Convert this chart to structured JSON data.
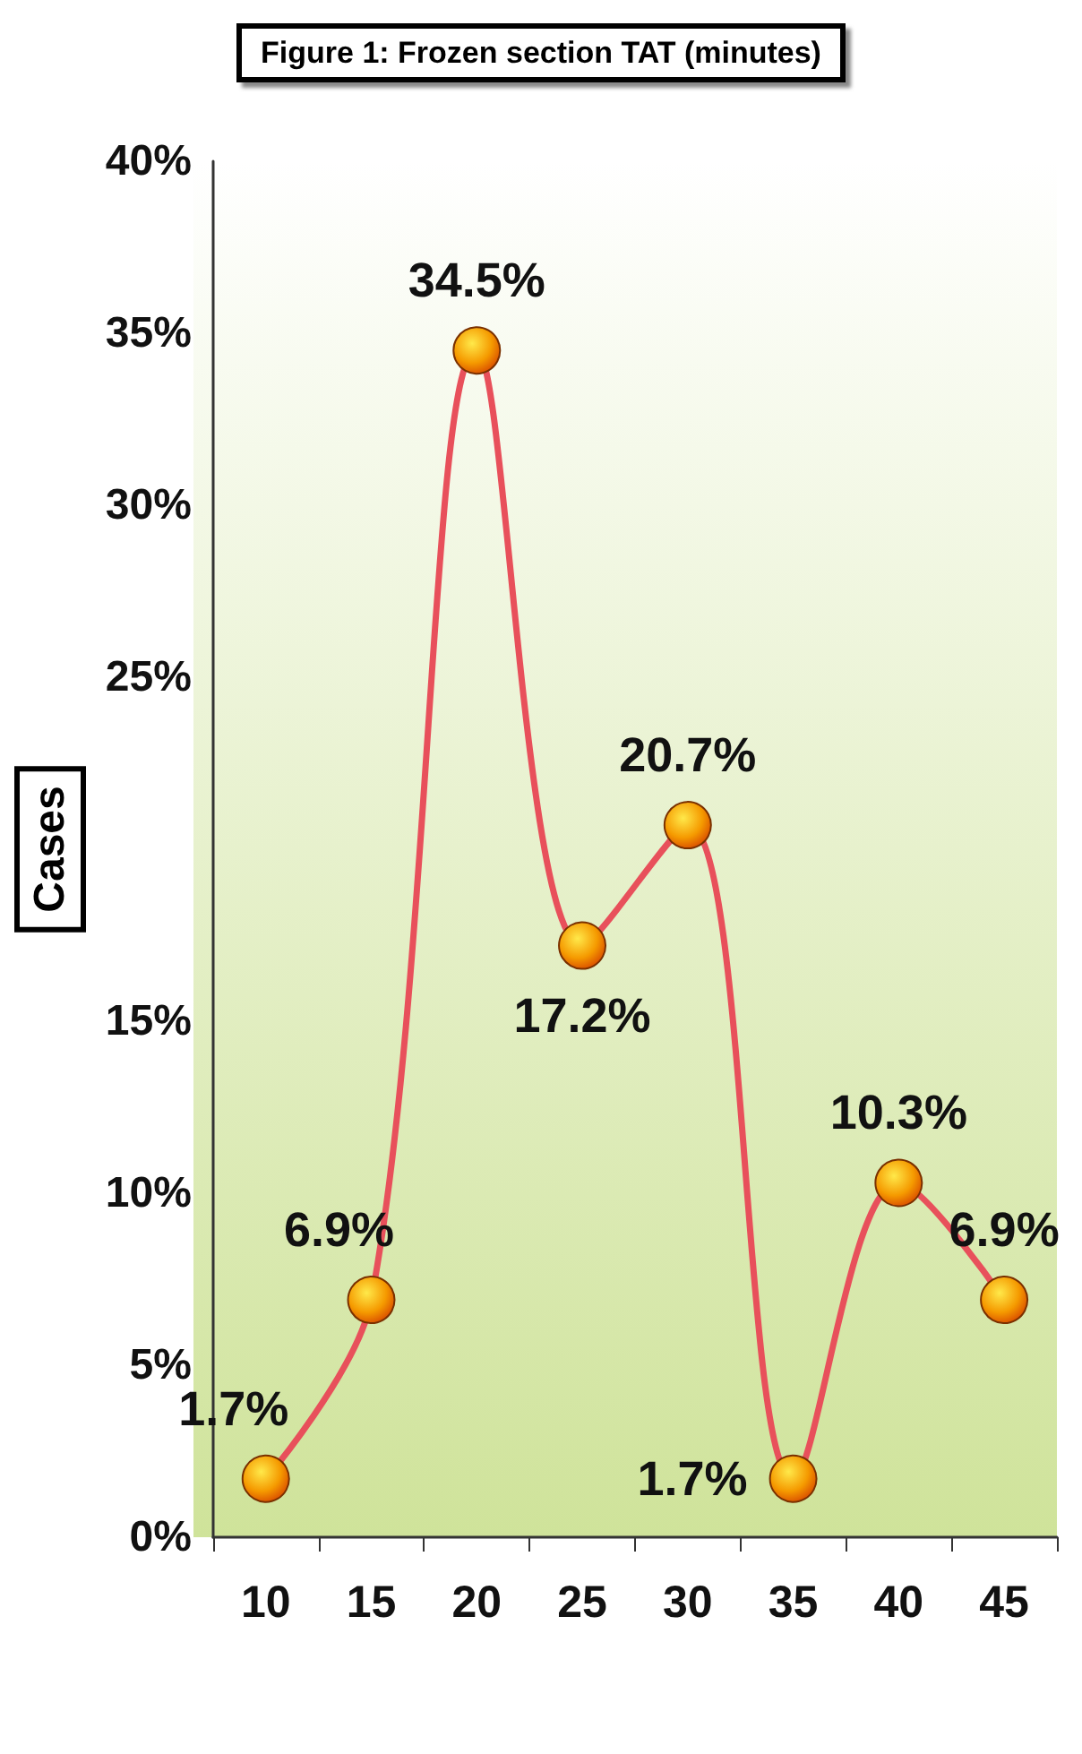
{
  "chart_data": {
    "type": "line",
    "title": "Figure 1: Frozen section TAT (minutes)",
    "ylabel": "Cases",
    "categories": [
      "10",
      "15",
      "20",
      "25",
      "30",
      "35",
      "40",
      "45"
    ],
    "series": [
      {
        "color": "#e8505b",
        "values": [
          1.7,
          6.9,
          34.5,
          17.2,
          20.7,
          1.7,
          10.3,
          6.9
        ],
        "value_labels": [
          "1.7%",
          "6.9%",
          "34.5%",
          "17.2%",
          "20.7%",
          "1.7%",
          "10.3%",
          "6.9%"
        ]
      }
    ],
    "ylim": [
      0,
      40
    ],
    "yticks": [
      {
        "value": 0,
        "label": "0%"
      },
      {
        "value": 5,
        "label": "5%"
      },
      {
        "value": 10,
        "label": "10%"
      },
      {
        "value": 15,
        "label": "15%"
      },
      {
        "value": 25,
        "label": "25%"
      },
      {
        "value": 30,
        "label": "30%"
      },
      {
        "value": 35,
        "label": "35%"
      },
      {
        "value": 40,
        "label": "40%"
      }
    ],
    "grid": false,
    "marker": "circle",
    "line_style": "solid"
  }
}
